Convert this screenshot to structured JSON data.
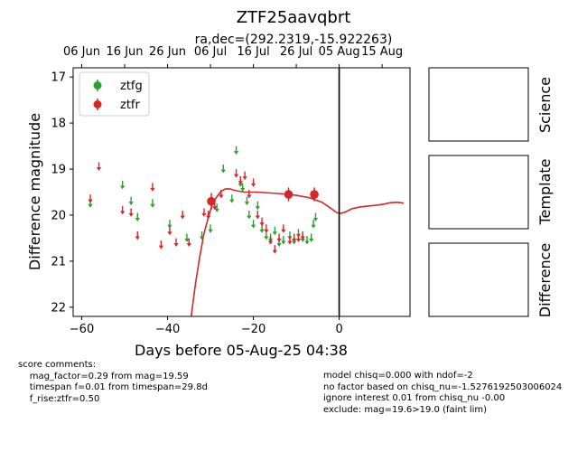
{
  "title": "ZTF25aavqbrt",
  "subtitle": "ra,dec=(292.2319,-15.922263)",
  "colors": {
    "ztfg": "#2ca02c",
    "ztfr": "#d62728",
    "axis": "#000000",
    "background": "#ffffff"
  },
  "chart_data": {
    "type": "scatter",
    "xlabel": "Days before 05-Aug-25 04:38",
    "ylabel": "Difference magnitude",
    "xlim": [
      -62,
      16.5
    ],
    "ylim": [
      22.2,
      16.8
    ],
    "y_inverted": true,
    "grid": false,
    "legend_position": "top-left",
    "x_ticks": [
      -60,
      -40,
      -20,
      0
    ],
    "x_tick_labels": [
      "−60",
      "−40",
      "−20",
      "0"
    ],
    "y_ticks": [
      17,
      18,
      19,
      20,
      21,
      22
    ],
    "top_axis_ticks": [
      {
        "x": -60,
        "label": "06 Jun"
      },
      {
        "x": -50,
        "label": "16 Jun"
      },
      {
        "x": -40,
        "label": "26 Jun"
      },
      {
        "x": -30,
        "label": "06 Jul"
      },
      {
        "x": -20,
        "label": "16 Jul"
      },
      {
        "x": -10,
        "label": "26 Jul"
      },
      {
        "x": 0,
        "label": "05 Aug"
      },
      {
        "x": 10,
        "label": "15 Aug"
      }
    ],
    "vertical_line_x": 0,
    "series": [
      {
        "name": "ztfg",
        "color": "#2ca02c",
        "upper_limits": [
          [
            -58.0,
            19.75
          ],
          [
            -50.5,
            19.35
          ],
          [
            -48.5,
            19.7
          ],
          [
            -47.0,
            20.05
          ],
          [
            -43.5,
            19.75
          ],
          [
            -39.5,
            20.2
          ],
          [
            -35.5,
            20.5
          ],
          [
            -32.0,
            20.45
          ],
          [
            -30.0,
            20.3
          ],
          [
            -28.5,
            19.85
          ],
          [
            -27.0,
            19.0
          ],
          [
            -25.0,
            19.65
          ],
          [
            -24.0,
            18.6
          ],
          [
            -23.0,
            19.3
          ],
          [
            -22.5,
            19.4
          ],
          [
            -21.5,
            19.7
          ],
          [
            -21.0,
            20.0
          ],
          [
            -20.0,
            20.2
          ],
          [
            -19.0,
            19.8
          ],
          [
            -18.0,
            20.3
          ],
          [
            -17.0,
            20.45
          ],
          [
            -16.0,
            20.5
          ],
          [
            -15.0,
            20.35
          ],
          [
            -14.0,
            20.6
          ],
          [
            -13.0,
            20.55
          ],
          [
            -11.5,
            20.45
          ],
          [
            -10.5,
            20.55
          ],
          [
            -9.5,
            20.4
          ],
          [
            -8.5,
            20.5
          ],
          [
            -7.5,
            20.55
          ],
          [
            -6.5,
            20.5
          ],
          [
            -6.0,
            20.2
          ],
          [
            -5.5,
            20.05
          ]
        ],
        "detections": []
      },
      {
        "name": "ztfr",
        "color": "#d62728",
        "upper_limits": [
          [
            -58.0,
            19.65
          ],
          [
            -56.0,
            18.95
          ],
          [
            -50.5,
            19.9
          ],
          [
            -48.5,
            19.95
          ],
          [
            -47.0,
            20.45
          ],
          [
            -43.5,
            19.4
          ],
          [
            -41.5,
            20.65
          ],
          [
            -39.5,
            20.35
          ],
          [
            -38.0,
            20.6
          ],
          [
            -36.5,
            20.0
          ],
          [
            -35.0,
            20.6
          ],
          [
            -31.5,
            19.95
          ],
          [
            -30.5,
            20.0
          ],
          [
            -29.0,
            19.8
          ],
          [
            -27.5,
            19.55
          ],
          [
            -24.0,
            19.1
          ],
          [
            -23.0,
            19.25
          ],
          [
            -22.0,
            19.15
          ],
          [
            -21.0,
            19.55
          ],
          [
            -20.0,
            19.3
          ],
          [
            -19.0,
            20.0
          ],
          [
            -18.0,
            20.15
          ],
          [
            -17.0,
            20.3
          ],
          [
            -16.0,
            20.55
          ],
          [
            -15.0,
            20.75
          ],
          [
            -14.0,
            20.5
          ],
          [
            -13.0,
            20.3
          ],
          [
            -11.5,
            20.55
          ],
          [
            -10.5,
            20.5
          ],
          [
            -9.5,
            20.5
          ],
          [
            -8.5,
            20.45
          ]
        ],
        "detections": [
          {
            "x": -29.8,
            "y": 19.7,
            "err": 0.18
          },
          {
            "x": -11.8,
            "y": 19.55,
            "err": 0.15
          },
          {
            "x": -5.8,
            "y": 19.55,
            "err": 0.15
          }
        ]
      }
    ],
    "model_curve": {
      "name": "ztfr model",
      "color": "#d62728",
      "points": [
        [
          -34.5,
          22.2
        ],
        [
          -33.5,
          21.5
        ],
        [
          -32.5,
          20.9
        ],
        [
          -31.5,
          20.4
        ],
        [
          -30.5,
          20.05
        ],
        [
          -29.5,
          19.75
        ],
        [
          -28.5,
          19.6
        ],
        [
          -27.5,
          19.48
        ],
        [
          -26.5,
          19.43
        ],
        [
          -25.5,
          19.43
        ],
        [
          -24.0,
          19.47
        ],
        [
          -22.0,
          19.5
        ],
        [
          -19.0,
          19.5
        ],
        [
          -16.0,
          19.52
        ],
        [
          -13.0,
          19.54
        ],
        [
          -10.0,
          19.57
        ],
        [
          -7.0,
          19.62
        ],
        [
          -4.0,
          19.72
        ],
        [
          -2.0,
          19.85
        ],
        [
          -0.5,
          19.95
        ],
        [
          0.5,
          19.96
        ],
        [
          1.5,
          19.93
        ],
        [
          3.0,
          19.86
        ],
        [
          5.0,
          19.82
        ],
        [
          7.0,
          19.8
        ],
        [
          9.0,
          19.78
        ],
        [
          10.5,
          19.76
        ],
        [
          12.0,
          19.73
        ],
        [
          13.5,
          19.72
        ],
        [
          15.0,
          19.74
        ]
      ]
    }
  },
  "panels": [
    {
      "label": "Science"
    },
    {
      "label": "Template"
    },
    {
      "label": "Difference"
    }
  ],
  "comments": {
    "left": "score comments:\n    mag_factor=0.29 from mag=19.59\n    timespan f=0.01 from timespan=29.8d\n    f_rise:ztfr=0.50",
    "right": "model chisq=0.000 with ndof=-2\nno factor based on chisq_nu=-1.5276192503006024\nignore interest 0.01 from chisq_nu -0.00\nexclude: mag=19.6>19.0 (faint lim)"
  }
}
